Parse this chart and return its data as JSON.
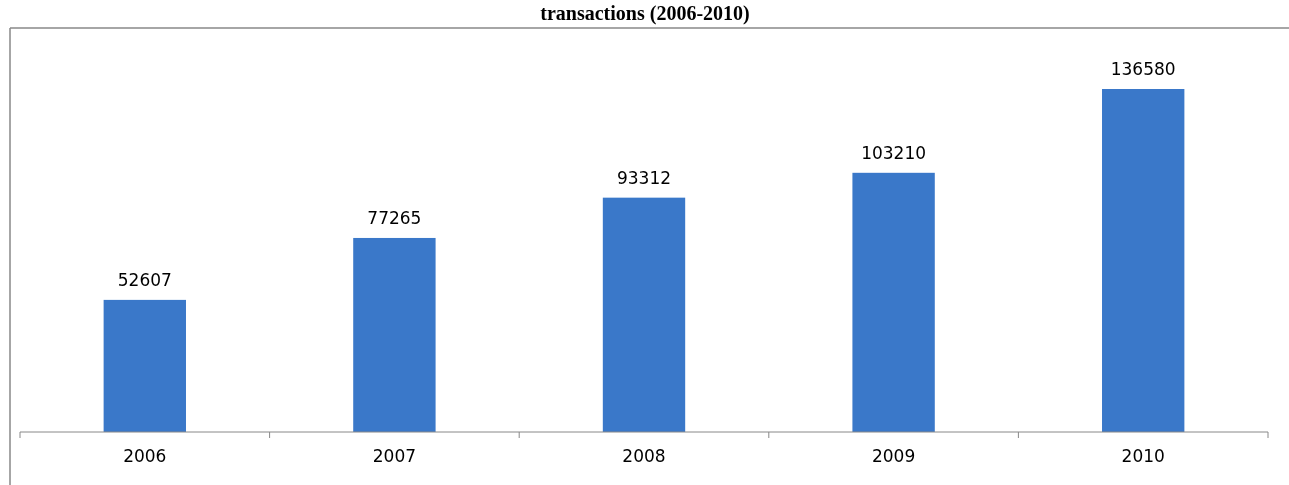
{
  "chart_data": {
    "type": "bar",
    "title": "transactions (2006-2010)",
    "categories": [
      "2006",
      "2007",
      "2008",
      "2009",
      "2010"
    ],
    "values": [
      52607,
      77265,
      93312,
      103210,
      136580
    ],
    "color": "#3a78c9",
    "data_labels": true
  }
}
